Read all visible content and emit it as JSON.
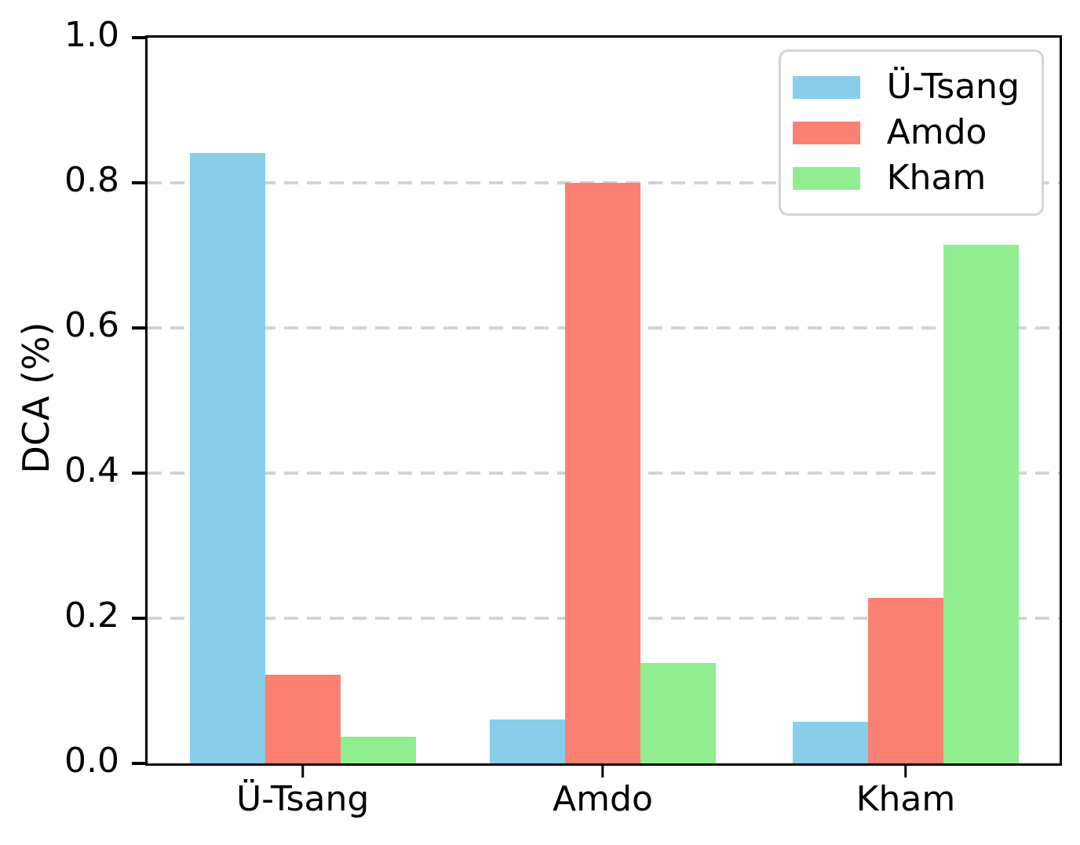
{
  "chart_data": {
    "type": "bar",
    "title": "",
    "xlabel": "",
    "ylabel": "DCA (%)",
    "categories": [
      "Ü-Tsang",
      "Amdo",
      "Kham"
    ],
    "series": [
      {
        "name": "Ü-Tsang",
        "color": "#87CEEB",
        "values": [
          0.841,
          0.061,
          0.057
        ]
      },
      {
        "name": "Amdo",
        "color": "#FA8072",
        "values": [
          0.122,
          0.8,
          0.228
        ]
      },
      {
        "name": "Kham",
        "color": "#90EE90",
        "values": [
          0.037,
          0.138,
          0.715
        ]
      }
    ],
    "ylim": [
      0.0,
      1.0
    ],
    "yticks": [
      0.0,
      0.2,
      0.4,
      0.6,
      0.8,
      1.0
    ],
    "ytick_labels": [
      "0.0",
      "0.2",
      "0.4",
      "0.6",
      "0.8",
      "1.0"
    ],
    "grid": {
      "axis": "y",
      "style": "dashed",
      "color": "#d3d3d3",
      "gridline_values": [
        0.2,
        0.4,
        0.6,
        0.8
      ]
    },
    "legend": {
      "position": "upper right",
      "entries": [
        "Ü-Tsang",
        "Amdo",
        "Kham"
      ]
    }
  }
}
